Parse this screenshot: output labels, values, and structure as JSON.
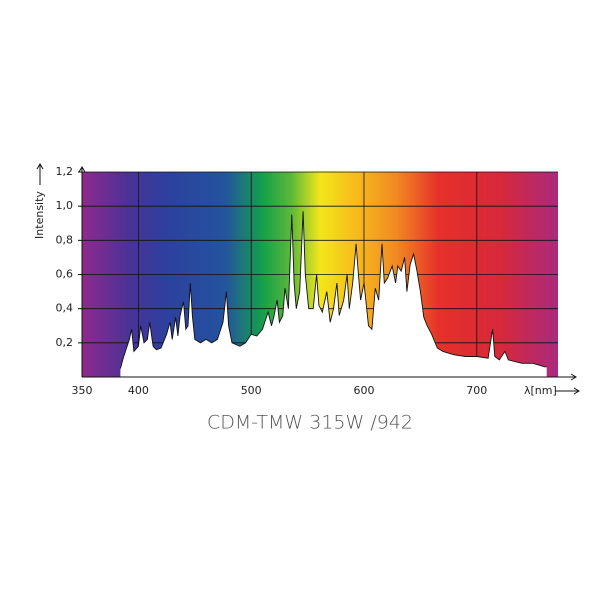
{
  "chart_data": {
    "type": "area",
    "title": "CDM-TMW 315W /942",
    "y_label": "Intensity",
    "x_label": "λ[nm]",
    "xlim": [
      350,
      772
    ],
    "ylim": [
      0,
      1.2
    ],
    "xticks": [
      350,
      400,
      500,
      600,
      700
    ],
    "yticks": [
      {
        "value": 0.2,
        "label": "0,2"
      },
      {
        "value": 0.4,
        "label": "0,4"
      },
      {
        "value": 0.6,
        "label": "0,6"
      },
      {
        "value": 0.8,
        "label": "0,8"
      },
      {
        "value": 1.0,
        "label": "1,0"
      },
      {
        "value": 1.2,
        "label": "1,2"
      }
    ],
    "grid": true,
    "color": "#111111",
    "x": [
      384,
      387,
      392,
      394,
      396,
      400,
      402,
      405,
      408,
      410,
      413,
      416,
      420,
      425,
      428,
      430,
      433,
      435,
      437,
      440,
      442,
      444,
      446,
      448,
      450,
      455,
      460,
      465,
      470,
      475,
      478,
      480,
      483,
      490,
      495,
      500,
      505,
      510,
      515,
      518,
      520,
      523,
      525,
      528,
      530,
      533,
      536,
      538,
      540,
      543,
      546,
      548,
      551,
      555,
      558,
      560,
      563,
      567,
      570,
      573,
      576,
      578,
      582,
      585,
      587,
      590,
      593,
      595,
      597,
      600,
      604,
      607,
      610,
      613,
      616,
      618,
      621,
      625,
      628,
      630,
      633,
      636,
      638,
      641,
      644,
      647,
      650,
      653,
      656,
      660,
      665,
      670,
      680,
      690,
      700,
      710,
      714,
      716,
      720,
      725,
      728,
      740,
      750,
      760,
      762
    ],
    "values": [
      0.05,
      0.12,
      0.22,
      0.28,
      0.15,
      0.18,
      0.3,
      0.2,
      0.22,
      0.32,
      0.18,
      0.16,
      0.17,
      0.25,
      0.32,
      0.22,
      0.35,
      0.24,
      0.36,
      0.44,
      0.28,
      0.3,
      0.55,
      0.35,
      0.22,
      0.2,
      0.22,
      0.2,
      0.22,
      0.32,
      0.5,
      0.3,
      0.2,
      0.18,
      0.2,
      0.25,
      0.24,
      0.28,
      0.38,
      0.3,
      0.35,
      0.45,
      0.32,
      0.36,
      0.52,
      0.4,
      0.95,
      0.55,
      0.4,
      0.5,
      0.97,
      0.6,
      0.4,
      0.4,
      0.6,
      0.42,
      0.38,
      0.5,
      0.32,
      0.4,
      0.55,
      0.36,
      0.45,
      0.6,
      0.4,
      0.55,
      0.78,
      0.6,
      0.45,
      0.55,
      0.3,
      0.28,
      0.52,
      0.45,
      0.78,
      0.55,
      0.58,
      0.65,
      0.55,
      0.65,
      0.62,
      0.7,
      0.5,
      0.66,
      0.72,
      0.62,
      0.5,
      0.35,
      0.3,
      0.25,
      0.17,
      0.15,
      0.13,
      0.12,
      0.12,
      0.11,
      0.28,
      0.12,
      0.1,
      0.15,
      0.1,
      0.08,
      0.08,
      0.06,
      0.06
    ]
  }
}
